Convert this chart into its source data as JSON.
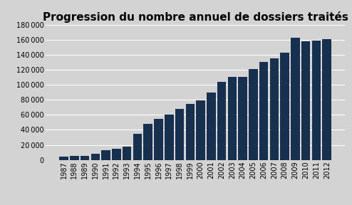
{
  "title": "Progression du nombre annuel de dossiers traités",
  "years": [
    "1987",
    "1988",
    "1989",
    "1990",
    "1991",
    "1992",
    "1993",
    "1994",
    "1995",
    "1996",
    "1997",
    "1998",
    "1999",
    "2000",
    "2001",
    "2002",
    "2003",
    "2004",
    "2005",
    "2006",
    "2007",
    "2008",
    "2009",
    "2010",
    "2011",
    "2012"
  ],
  "values": [
    4500,
    5000,
    5000,
    8000,
    13000,
    14500,
    17500,
    35000,
    48000,
    55000,
    60000,
    68000,
    74000,
    79000,
    90000,
    104000,
    110000,
    110000,
    121000,
    130000,
    135000,
    143000,
    163000,
    158000,
    159000,
    161000
  ],
  "bar_color": "#17304f",
  "background_color": "#d3d3d3",
  "figure_background": "#d3d3d3",
  "ylim": [
    0,
    180000
  ],
  "yticks": [
    0,
    20000,
    40000,
    60000,
    80000,
    100000,
    120000,
    140000,
    160000,
    180000
  ],
  "title_fontsize": 11,
  "tick_fontsize": 7,
  "bar_width": 0.85
}
